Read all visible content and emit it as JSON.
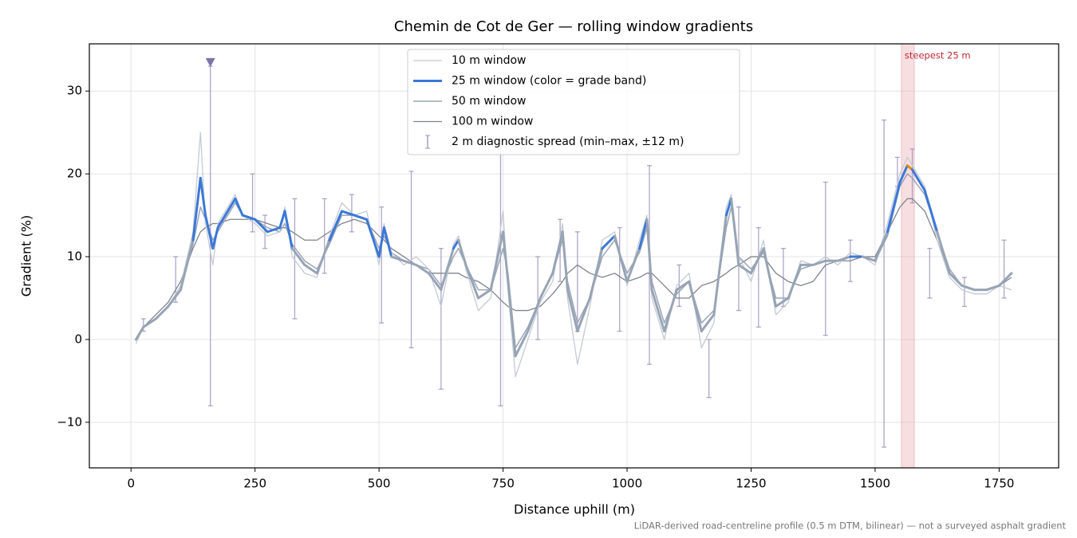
{
  "chart_data": {
    "type": "line",
    "title": "Chemin de Cot de Ger — rolling window gradients",
    "x_label": "Distance uphill (m)",
    "y_label": "Gradient (%)",
    "footnote": "LiDAR-derived road-centreline profile (0.5 m DTM, bilinear) — not a surveyed asphalt gradient",
    "xlim": [
      -84,
      1870
    ],
    "ylim": [
      -15.5,
      35.7
    ],
    "xticks": [
      0,
      250,
      500,
      750,
      1000,
      1250,
      1500,
      1750
    ],
    "yticks": [
      {
        "value": -10,
        "label": "−10"
      },
      0,
      10,
      20,
      30
    ],
    "grid": true,
    "legend": "upper center",
    "x": [
      10,
      25,
      50,
      75,
      100,
      125,
      140,
      150,
      165,
      175,
      200,
      210,
      225,
      250,
      275,
      300,
      310,
      325,
      350,
      375,
      400,
      425,
      450,
      475,
      500,
      510,
      525,
      550,
      575,
      600,
      625,
      650,
      660,
      675,
      700,
      725,
      750,
      760,
      775,
      800,
      825,
      850,
      870,
      880,
      900,
      925,
      950,
      975,
      1000,
      1025,
      1040,
      1050,
      1075,
      1100,
      1125,
      1150,
      1175,
      1200,
      1210,
      1225,
      1250,
      1275,
      1300,
      1325,
      1350,
      1375,
      1400,
      1425,
      1450,
      1475,
      1500,
      1525,
      1550,
      1565,
      1575,
      1600,
      1625,
      1650,
      1675,
      1700,
      1725,
      1750,
      1775
    ],
    "series": [
      {
        "name": "10 m window",
        "color": "#c3cad3",
        "width": 1.3,
        "values": [
          -0.5,
          1.5,
          2.5,
          4,
          6.5,
          13,
          25,
          14,
          9,
          14,
          16.5,
          17.5,
          15,
          14,
          12.5,
          13,
          16,
          10,
          8,
          7.5,
          12.5,
          16.5,
          15,
          15.5,
          9,
          14,
          10.5,
          9,
          10,
          8.5,
          4,
          11.5,
          12.5,
          8.5,
          3.5,
          5,
          15.5,
          6,
          -4.5,
          0,
          4.5,
          7,
          14,
          5,
          -3,
          4,
          12,
          13,
          6.5,
          12,
          15,
          5,
          0,
          6.5,
          8,
          -1,
          2,
          16,
          17.5,
          10,
          7,
          12,
          3,
          4.5,
          9.5,
          9,
          10,
          9,
          10.5,
          10,
          9,
          14,
          20,
          22,
          21,
          18.5,
          12,
          7.5,
          6,
          5.5,
          5.5,
          6.5,
          6
        ]
      },
      {
        "name": "25 m window (color = grade band)",
        "color": "#97a4b5",
        "width": 3,
        "grade_bands": [
          {
            "from": 10,
            "color": "#3b78d8"
          },
          {
            "from": 20,
            "color": "#e08b00"
          }
        ],
        "values": [
          0,
          1.5,
          2.5,
          4,
          6,
          12,
          19.5,
          15,
          11,
          13.5,
          16,
          17,
          15,
          14.5,
          13,
          13.5,
          15.5,
          11,
          9,
          8,
          12,
          15.5,
          15,
          14.5,
          10,
          13.5,
          10,
          9.5,
          9,
          8,
          6,
          11,
          12,
          9,
          5,
          6,
          13,
          7,
          -2,
          1,
          5,
          8,
          13,
          6,
          1,
          5,
          11,
          12.5,
          7,
          11,
          14.5,
          6,
          1,
          6,
          7,
          1,
          3,
          15,
          17,
          9,
          8,
          11,
          4,
          5,
          9,
          9,
          9.5,
          9.5,
          10,
          10,
          9.5,
          13,
          19,
          21,
          20.5,
          18,
          13,
          8,
          6.5,
          6,
          6,
          6.5,
          8
        ]
      },
      {
        "name": "50 m window",
        "color": "#9aa5b6",
        "width": 1.5,
        "values": [
          0,
          1.5,
          2.5,
          4,
          6,
          11.5,
          16,
          14.5,
          12,
          13,
          15.5,
          16.5,
          15,
          14.5,
          13.5,
          13,
          14,
          11.5,
          9.5,
          8.5,
          11.5,
          15,
          15,
          14.5,
          11,
          12.5,
          10.5,
          9.5,
          9,
          8.5,
          6.5,
          10,
          11,
          9,
          6,
          6,
          11,
          8,
          -1,
          1.5,
          5,
          8,
          12,
          7,
          2,
          5,
          10,
          12,
          8,
          10.5,
          13.5,
          7,
          2,
          5.5,
          7,
          2,
          3.5,
          13.5,
          16,
          10,
          8.5,
          10.5,
          5,
          5,
          8.5,
          9,
          9.5,
          9.5,
          10,
          10,
          9.5,
          12.5,
          18.5,
          20,
          19.5,
          17.5,
          13,
          8.5,
          6.5,
          6,
          6,
          6.5,
          8
        ]
      },
      {
        "name": "100 m window",
        "color": "#7f838c",
        "width": 1.3,
        "values": [
          0,
          1.5,
          3,
          4.5,
          7,
          11,
          13,
          13.5,
          14,
          14,
          14.5,
          14.5,
          14.5,
          14.5,
          14,
          13.5,
          13.5,
          13,
          12,
          12,
          13,
          14,
          14.5,
          14,
          12.5,
          12,
          11,
          10,
          9,
          8,
          8,
          8,
          8,
          7.5,
          7,
          6,
          4.5,
          4,
          3.5,
          3.5,
          4,
          5.5,
          7,
          8,
          9,
          8,
          7.5,
          8,
          7,
          7.5,
          8,
          8,
          6.5,
          5,
          5,
          6.5,
          7,
          8,
          8.5,
          9,
          10,
          10,
          8,
          7,
          6.5,
          7,
          9,
          9.5,
          9.5,
          10,
          10,
          13,
          16,
          17,
          17,
          15.5,
          12,
          8,
          6.5,
          6,
          6,
          6.5,
          7.5
        ]
      }
    ],
    "spread": {
      "name": "2 m diagnostic spread (min–max, ±12 m)",
      "color": "#9b90ba",
      "bars": [
        {
          "x": 25,
          "min": 1,
          "max": 2.5
        },
        {
          "x": 90,
          "min": 4.5,
          "max": 10
        },
        {
          "x": 160,
          "min": -8,
          "max": 33
        },
        {
          "x": 245,
          "min": 13,
          "max": 20
        },
        {
          "x": 270,
          "min": 11,
          "max": 15
        },
        {
          "x": 330,
          "min": 2.5,
          "max": 17
        },
        {
          "x": 390,
          "min": 8,
          "max": 17
        },
        {
          "x": 445,
          "min": 13,
          "max": 17.5
        },
        {
          "x": 505,
          "min": 2,
          "max": 16
        },
        {
          "x": 565,
          "min": -1,
          "max": 20.3
        },
        {
          "x": 625,
          "min": -6,
          "max": 11
        },
        {
          "x": 745,
          "min": -8,
          "max": 24
        },
        {
          "x": 820,
          "min": 0,
          "max": 10
        },
        {
          "x": 865,
          "min": 7,
          "max": 14.5
        },
        {
          "x": 900,
          "min": 1,
          "max": 13
        },
        {
          "x": 985,
          "min": 1,
          "max": 13.5
        },
        {
          "x": 1045,
          "min": -3,
          "max": 21
        },
        {
          "x": 1105,
          "min": 4,
          "max": 9
        },
        {
          "x": 1165,
          "min": -7,
          "max": 0
        },
        {
          "x": 1225,
          "min": 3.5,
          "max": 16
        },
        {
          "x": 1265,
          "min": 1.5,
          "max": 13.5
        },
        {
          "x": 1315,
          "min": 4,
          "max": 11
        },
        {
          "x": 1400,
          "min": 0.5,
          "max": 19
        },
        {
          "x": 1450,
          "min": 7,
          "max": 12
        },
        {
          "x": 1518,
          "min": -13,
          "max": 26.5
        },
        {
          "x": 1545,
          "min": 18.5,
          "max": 22
        },
        {
          "x": 1575,
          "min": 16.5,
          "max": 23
        },
        {
          "x": 1610,
          "min": 5,
          "max": 11
        },
        {
          "x": 1680,
          "min": 4,
          "max": 7.5
        },
        {
          "x": 1760,
          "min": 5,
          "max": 12
        }
      ]
    },
    "peak_marker": {
      "x": 160,
      "y": 33.5,
      "color": "#7f72a8"
    },
    "highlight": {
      "range": [
        1553,
        1579
      ],
      "label": "steepest 25 m",
      "color": "#e8a0a6"
    }
  }
}
